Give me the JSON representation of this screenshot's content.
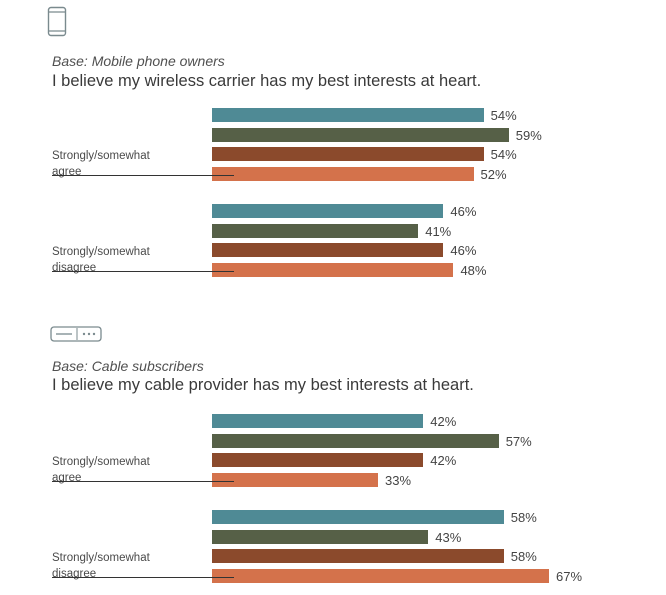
{
  "colors": {
    "series": [
      "#4f8a95",
      "#566047",
      "#8b4a2c",
      "#d4724b"
    ],
    "icon_stroke": "#7a8a8e"
  },
  "icons": {
    "section_1": "mobile-phone-icon",
    "section_2": "cable-box-icon"
  },
  "chart_data": [
    {
      "type": "bar",
      "orientation": "horizontal",
      "base": "Base: Mobile phone owners",
      "statement": "I believe my wireless carrier has my best interests at heart.",
      "categories": [
        "Strongly/somewhat agree",
        "Strongly/somewhat disagree"
      ],
      "category_lines": [
        [
          "Strongly/somewhat",
          "agree"
        ],
        [
          "Strongly/somewhat",
          "disagree"
        ]
      ],
      "series": [
        {
          "values": [
            54,
            46
          ],
          "labels": [
            "54%",
            "46%"
          ]
        },
        {
          "values": [
            59,
            41
          ],
          "labels": [
            "59%",
            "41%"
          ]
        },
        {
          "values": [
            54,
            46
          ],
          "labels": [
            "54%",
            "46%"
          ]
        },
        {
          "values": [
            52,
            48
          ],
          "labels": [
            "52%",
            "48%"
          ]
        }
      ],
      "xlim": [
        0,
        100
      ],
      "grid": false,
      "legend": "none"
    },
    {
      "type": "bar",
      "orientation": "horizontal",
      "base": "Base: Cable subscribers",
      "statement": "I believe my cable provider has my best interests at heart.",
      "categories": [
        "Strongly/somewhat agree",
        "Strongly/somewhat disagree"
      ],
      "category_lines": [
        [
          "Strongly/somewhat",
          "agree"
        ],
        [
          "Strongly/somewhat",
          "disagree"
        ]
      ],
      "series": [
        {
          "values": [
            42,
            58
          ],
          "labels": [
            "42%",
            "58%"
          ]
        },
        {
          "values": [
            57,
            43
          ],
          "labels": [
            "57%",
            "43%"
          ]
        },
        {
          "values": [
            42,
            58
          ],
          "labels": [
            "42%",
            "58%"
          ]
        },
        {
          "values": [
            33,
            67
          ],
          "labels": [
            "33%",
            "67%"
          ]
        }
      ],
      "xlim": [
        0,
        100
      ],
      "grid": false,
      "legend": "none"
    }
  ]
}
